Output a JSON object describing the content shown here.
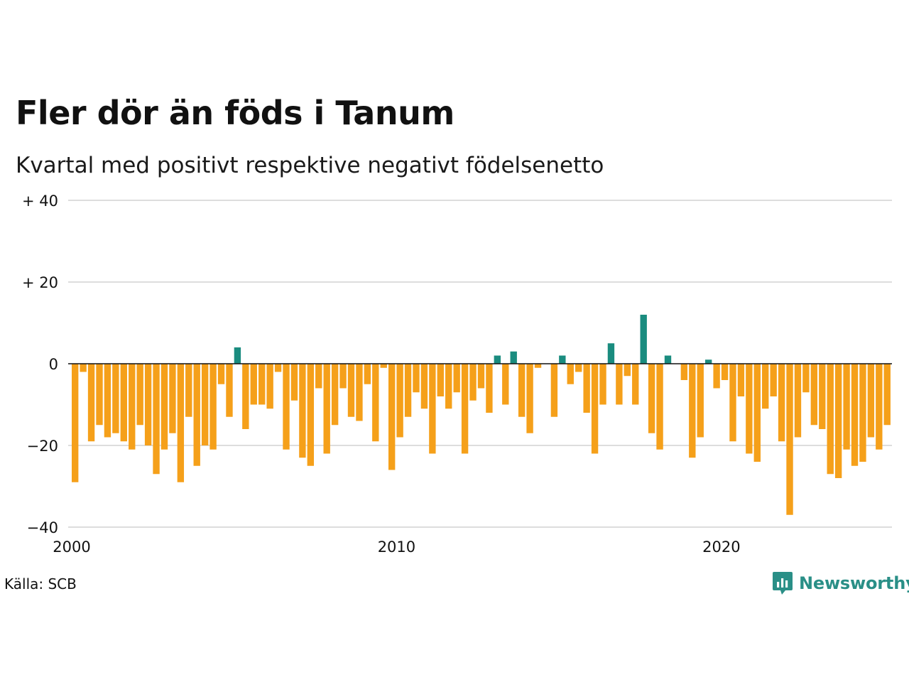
{
  "header": {
    "title": "Fler dör än föds i Tanum",
    "subtitle": "Kvartal med positivt respektive negativt födelsenetto"
  },
  "footer": {
    "source": "Källa: SCB",
    "brand": "Newsworthy"
  },
  "colors": {
    "positive": "#1a8c7f",
    "negative": "#f5a01a",
    "grid": "#dddddd",
    "zero_line": "#111111",
    "brand": "#2a8f87"
  },
  "icons": {
    "brand_logo": "newsworthy-logo-icon"
  },
  "chart_data": {
    "type": "bar",
    "x_start": "2000 Q1",
    "x_ticks": [
      {
        "value": 2000,
        "label": "2000"
      },
      {
        "value": 2010,
        "label": "2010"
      },
      {
        "value": 2020,
        "label": "2020"
      }
    ],
    "y_ticks": [
      {
        "value": 40,
        "label": "+ 40"
      },
      {
        "value": 20,
        "label": "+ 20"
      },
      {
        "value": 0,
        "label": "0"
      },
      {
        "value": -20,
        "label": "−20"
      },
      {
        "value": -40,
        "label": "−40"
      }
    ],
    "ylim": [
      -40,
      40
    ],
    "xlim": [
      2000,
      2025.5
    ],
    "grid": true,
    "values": [
      -29,
      -2,
      -19,
      -15,
      -18,
      -17,
      -19,
      -21,
      -15,
      -20,
      -27,
      -21,
      -17,
      -29,
      -13,
      -25,
      -20,
      -21,
      -5,
      -13,
      4,
      -16,
      -10,
      -10,
      -11,
      -2,
      -21,
      -9,
      -23,
      -25,
      -6,
      -22,
      -15,
      -6,
      -13,
      -14,
      -5,
      -19,
      -1,
      -26,
      -18,
      -13,
      -7,
      -11,
      -22,
      -8,
      -11,
      -7,
      -22,
      -9,
      -6,
      -12,
      2,
      -10,
      3,
      -13,
      -17,
      -1,
      0,
      -13,
      2,
      -5,
      -2,
      -12,
      -22,
      -10,
      5,
      -10,
      -3,
      -10,
      12,
      -17,
      -21,
      2,
      0,
      -4,
      -23,
      -18,
      1,
      -6,
      -4,
      -19,
      -8,
      -22,
      -24,
      -11,
      -8,
      -19,
      -37,
      -18,
      -7,
      -15,
      -16,
      -27,
      -28,
      -21,
      -25,
      -24,
      -18,
      -21,
      -15
    ]
  }
}
